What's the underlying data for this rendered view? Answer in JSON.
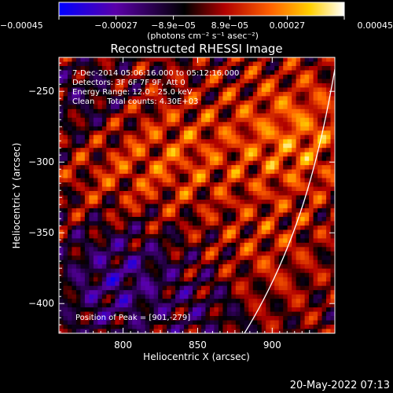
{
  "chart_data": {
    "type": "heatmap",
    "title": "Reconstructed RHESSI Image",
    "xlabel": "Heliocentric X (arcsec)",
    "ylabel": "Heliocentric Y (arcsec)",
    "xlim": [
      757,
      942
    ],
    "ylim": [
      -421,
      -226
    ],
    "x_ticks": [
      800,
      850,
      900
    ],
    "x_tick_labels": [
      "800",
      "850",
      "900"
    ],
    "y_ticks": [
      -250,
      -300,
      -350,
      -400
    ],
    "y_tick_labels": [
      "−250",
      "−300",
      "−350",
      "−400"
    ],
    "colorbar": {
      "range": [
        -0.00045,
        0.00045
      ],
      "tick_values": [
        -0.00045,
        -0.00027,
        -8.9e-05,
        8.9e-05,
        0.00027,
        0.00045
      ],
      "tick_labels": [
        "−0.00045",
        "−0.00027",
        "−8.9e−05",
        "8.9e−05",
        "0.00027",
        "0.00045"
      ],
      "unit_label": "(photons cm⁻² s⁻¹ asec⁻²)",
      "colormap": [
        "#0000ff",
        "#5a00a8",
        "#000000",
        "#b00000",
        "#ff6000",
        "#ffd000",
        "#ffffff"
      ]
    },
    "annotations": [
      "7-Dec-2014 05:06:16.000 to 05:12:16.000",
      "Detectors: 3F 6F 7F 9F, Att 0",
      "Energy Range: 12.0 - 25.0 keV",
      "Clean     Total counts: 4.30E+03"
    ],
    "peak_label": "Position of Peak = [901,-279]",
    "peak": [
      901,
      -279
    ],
    "grid": false,
    "legend": "none"
  },
  "footer": {
    "timestamp": "20-May-2022 07:13"
  }
}
